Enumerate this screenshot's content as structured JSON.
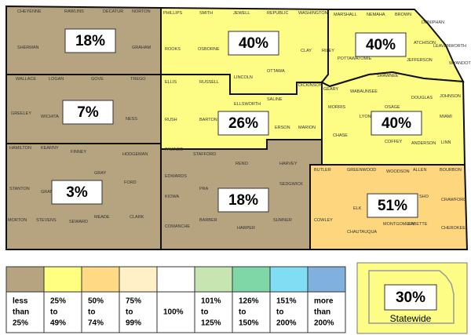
{
  "regions": [
    {
      "percent": "18%",
      "color": "#b5a47f"
    },
    {
      "percent": "7%",
      "color": "#b5a47f"
    },
    {
      "percent": "3%",
      "color": "#b5a47f"
    },
    {
      "percent": "40%",
      "color": "#fdfd86"
    },
    {
      "percent": "26%",
      "color": "#fdfd86"
    },
    {
      "percent": "18%",
      "color": "#b5a47f"
    },
    {
      "percent": "40%",
      "color": "#fdfd86"
    },
    {
      "percent": "40%",
      "color": "#fdfd86"
    },
    {
      "percent": "51%",
      "color": "#fed67e"
    }
  ],
  "counties": [
    "CHEYENNE",
    "RAWLINS",
    "DECATUR",
    "NORTON",
    "SHERMAN",
    "GRAHAM",
    "WALLACE",
    "LOGAN",
    "GOVE",
    "TREGO",
    "GREELEY",
    "WICHITA",
    "NESS",
    "HAMILTON",
    "KEARNY",
    "FINNEY",
    "HODGEMAN",
    "GRAY",
    "FORD",
    "STANTON",
    "GRAN",
    "MORTON",
    "STEVENS",
    "SEWARD",
    "MEADE",
    "CLARK",
    "PHILLIPS",
    "SMITH",
    "JEWELL",
    "REPUBLIC",
    "WASHINGTON",
    "ROOKS",
    "OSBORNE",
    "CLAY",
    "OTTAWA",
    "LINCOLN",
    "ELLIS",
    "RUSSELL",
    "SALINE",
    "DICKINSON",
    "ELLSWORTH",
    "RUSH",
    "BARTON",
    "RICE",
    "ERSON",
    "MARION",
    "PAWNEE",
    "STAFFORD",
    "RENO",
    "HARVEY",
    "EDWARDS",
    "SEDGWICK",
    "PRA",
    "KIOWA",
    "BARBER",
    "HARPER",
    "SUMNER",
    "COMANCHE",
    "MARSHALL",
    "NEMAHA",
    "BROWN",
    "DONIPHAN",
    "ATCHISON",
    "POTTAWATOMIE",
    "JEFFERSON",
    "LEAVENWORTH",
    "WYANDOTTE",
    "RILEY",
    "SHAWNEE",
    "GEARY",
    "WABAUNSEE",
    "DOUGLAS",
    "JOHNSON",
    "MORRIS",
    "LYON",
    "OSAGE",
    "MIAMI",
    "CHASE",
    "COFFEY",
    "ANDERSON",
    "LINN",
    "BUTLER",
    "GREENWOOD",
    "WOODSON",
    "ALLEN",
    "BOURBON",
    "ELK",
    "SHO",
    "CRAWFORD",
    "COWLEY",
    "MONTGOMERY",
    "LABETTE",
    "CHEROKEE",
    "CHAUTAUQUA"
  ],
  "legend": [
    {
      "color": "#b5a47f",
      "label": [
        "less",
        "than",
        "25%"
      ]
    },
    {
      "color": "#ffff80",
      "label": [
        "25%",
        "to",
        "49%"
      ]
    },
    {
      "color": "#ffd983",
      "label": [
        "50%",
        "to",
        "74%"
      ]
    },
    {
      "color": "#fff0c8",
      "label": [
        "75%",
        "to",
        "99%"
      ]
    },
    {
      "color": "#ffffff",
      "label": [
        "100%"
      ]
    },
    {
      "color": "#c6e5b0",
      "label": [
        "101%",
        "to",
        "125%"
      ]
    },
    {
      "color": "#7fd7a8",
      "label": [
        "126%",
        "to",
        "150%"
      ]
    },
    {
      "color": "#80ddf4",
      "label": [
        "151%",
        "to",
        "200%"
      ]
    },
    {
      "color": "#7fb0de",
      "label": [
        "more",
        "than",
        "200%"
      ]
    }
  ],
  "statewide": {
    "percent": "30%",
    "label": "Statewide",
    "color": "#fdfd86"
  }
}
